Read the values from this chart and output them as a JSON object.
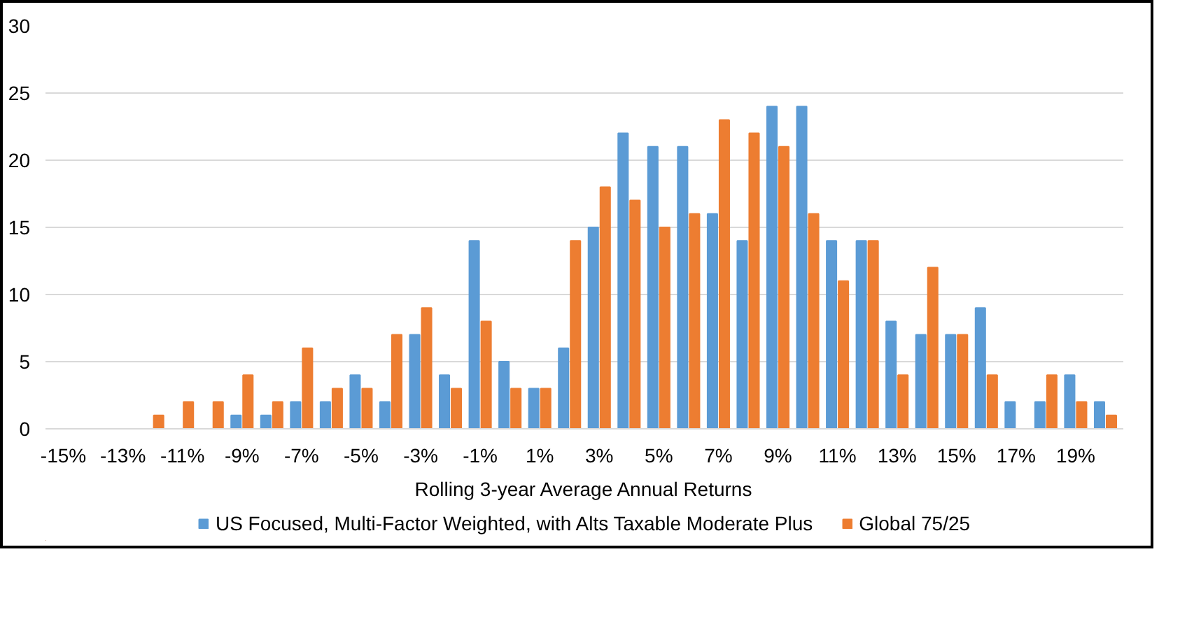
{
  "chart_data": {
    "type": "bar",
    "xlabel": "Rolling 3-year Average Annual Returns",
    "categories": [
      "-15%",
      null,
      "-13%",
      null,
      "-11%",
      null,
      "-9%",
      null,
      "-7%",
      null,
      "-5%",
      null,
      "-3%",
      null,
      "-1%",
      null,
      "1%",
      null,
      "3%",
      null,
      "5%",
      null,
      "7%",
      null,
      "9%",
      null,
      "11%",
      null,
      "13%",
      null,
      "15%",
      null,
      "17%",
      null,
      "19%",
      null
    ],
    "series": [
      {
        "name": "US Focused, Multi-Factor Weighted, with Alts Taxable Moderate Plus",
        "color": "#5b9bd5",
        "values": [
          0,
          0,
          0,
          0,
          0,
          0,
          1,
          1,
          2,
          2,
          4,
          2,
          7,
          4,
          14,
          5,
          3,
          6,
          15,
          22,
          21,
          21,
          16,
          14,
          24,
          24,
          14,
          14,
          8,
          7,
          7,
          9,
          2,
          2,
          4,
          2
        ]
      },
      {
        "name": "Global 75/25",
        "color": "#ed7d31",
        "values": [
          0,
          0,
          0,
          1,
          2,
          2,
          4,
          2,
          6,
          3,
          3,
          7,
          9,
          3,
          8,
          3,
          3,
          14,
          18,
          17,
          15,
          16,
          23,
          22,
          21,
          16,
          11,
          14,
          4,
          12,
          7,
          4,
          0,
          4,
          2,
          1
        ]
      }
    ],
    "ylim": [
      0,
      30
    ],
    "yticks": [
      0,
      5,
      10,
      15,
      20,
      25,
      30
    ],
    "grid": "y",
    "legend": "bottom"
  }
}
